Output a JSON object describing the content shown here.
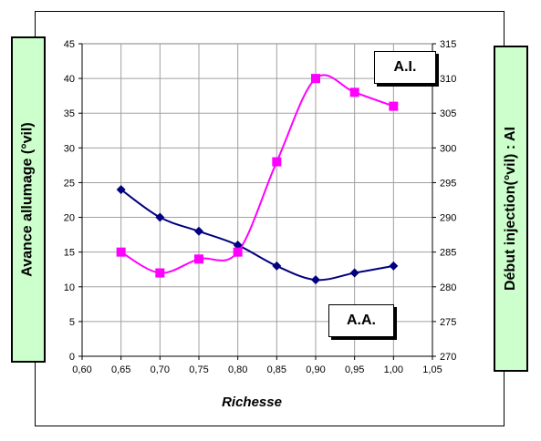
{
  "chart_data": {
    "type": "line",
    "xlabel": "Richesse",
    "ylabel_left": "Avance allumage (°vil)",
    "ylabel_right": "Début injection(°vil) : AI",
    "x_ticks": [
      "0,60",
      "0,65",
      "0,70",
      "0,75",
      "0,80",
      "0,85",
      "0,90",
      "0,95",
      "1,00",
      "1,05"
    ],
    "xlim": [
      0.6,
      1.05
    ],
    "y_left_ticks": [
      "0",
      "5",
      "10",
      "15",
      "20",
      "25",
      "30",
      "35",
      "40",
      "45"
    ],
    "ylim_left": [
      0,
      45
    ],
    "y_right_ticks": [
      "270",
      "275",
      "280",
      "285",
      "290",
      "295",
      "300",
      "305",
      "310",
      "315"
    ],
    "ylim_right": [
      270,
      315
    ],
    "grid": true,
    "series": [
      {
        "name": "A.A.",
        "axis": "left",
        "color": "#000080",
        "marker": "diamond",
        "x": [
          0.65,
          0.7,
          0.75,
          0.8,
          0.85,
          0.9,
          0.95,
          1.0
        ],
        "y": [
          24,
          20,
          18,
          16,
          13,
          11,
          12,
          13
        ]
      },
      {
        "name": "A.I.",
        "axis": "right",
        "color": "#ff00ff",
        "marker": "square",
        "x": [
          0.65,
          0.7,
          0.75,
          0.8,
          0.85,
          0.9,
          0.95,
          1.0
        ],
        "y": [
          285,
          282,
          284,
          285,
          298,
          310,
          308,
          306
        ]
      }
    ]
  }
}
